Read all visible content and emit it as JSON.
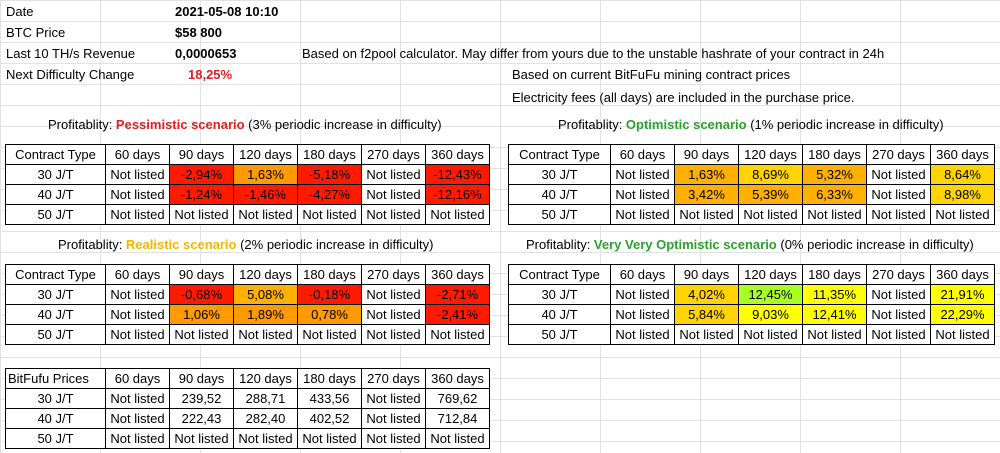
{
  "header": {
    "date_label": "Date",
    "date_value": "2021-05-08 10:10",
    "btc_label": "BTC Price",
    "btc_value": "$58 800",
    "revenue_label": "Last 10 TH/s Revenue",
    "revenue_value": "0,0000653",
    "difficulty_label": "Next Difficulty Change",
    "difficulty_value": "18,25%",
    "note_f2pool": "Based on f2pool calculator. May differ from yours due to the unstable hashrate of your contract in 24h",
    "note_prices": "Based on current BitFuFu mining contract prices",
    "note_fees": "Electricity fees (all days) are included in the purchase price."
  },
  "colors": {
    "red": "#ff1a00",
    "orange": "#ff9a00",
    "amber": "#ffb000",
    "yellow": "#ffff00",
    "yellow_orange": "#ffd400",
    "lime": "#aaff22",
    "title_red": "#e02020",
    "title_green": "#2ca02c",
    "title_yellow": "#f2b800"
  },
  "columns": [
    "60 days",
    "90 days",
    "120 days",
    "180 days",
    "270 days",
    "360 days"
  ],
  "pessimistic": {
    "prefix": "Profitablity: ",
    "name": "Pessimistic scenario",
    "suffix": " (3% periodic increase in difficulty)",
    "header": "Contract Type",
    "rows": [
      {
        "type": "30 J/T",
        "cells": [
          "Not listed",
          "-2,94%",
          "1,63%",
          "-5,18%",
          "Not listed",
          "-12,43%"
        ]
      },
      {
        "type": "40 J/T",
        "cells": [
          "Not listed",
          "-1,24%",
          "-1,46%",
          "-4,27%",
          "Not listed",
          "-12,16%"
        ]
      },
      {
        "type": "50 J/T",
        "cells": [
          "Not listed",
          "Not listed",
          "Not listed",
          "Not listed",
          "Not listed",
          "Not listed"
        ]
      }
    ]
  },
  "optimistic": {
    "prefix": "Profitablity: ",
    "name": "Optimistic scenario",
    "suffix": " (1% periodic increase in difficulty)",
    "header": "Contract Type",
    "rows": [
      {
        "type": "30 J/T",
        "cells": [
          "Not listed",
          "1,63%",
          "8,69%",
          "5,32%",
          "Not listed",
          "8,64%"
        ]
      },
      {
        "type": "40 J/T",
        "cells": [
          "Not listed",
          "3,42%",
          "5,39%",
          "6,33%",
          "Not listed",
          "8,98%"
        ]
      },
      {
        "type": "50 J/T",
        "cells": [
          "Not listed",
          "Not listed",
          "Not listed",
          "Not listed",
          "Not listed",
          "Not listed"
        ]
      }
    ]
  },
  "realistic": {
    "prefix": "Profitablity: ",
    "name": "Realistic scenario",
    "suffix": " (2% periodic increase in difficulty)",
    "header": "Contract Type",
    "rows": [
      {
        "type": "30 J/T",
        "cells": [
          "Not listed",
          "-0,68%",
          "5,08%",
          "-0,18%",
          "Not listed",
          "-2,71%"
        ]
      },
      {
        "type": "40 J/T",
        "cells": [
          "Not listed",
          "1,06%",
          "1,89%",
          "0,78%",
          "Not listed",
          "-2,41%"
        ]
      },
      {
        "type": "50 J/T",
        "cells": [
          "Not listed",
          "Not listed",
          "Not listed",
          "Not listed",
          "Not listed",
          "Not listed"
        ]
      }
    ]
  },
  "very_optimistic": {
    "prefix": "Profitablity: ",
    "name": "Very Very Optimistic scenario",
    "suffix": " (0% periodic increase in difficulty)",
    "header": "Contract Type",
    "rows": [
      {
        "type": "30 J/T",
        "cells": [
          "Not listed",
          "4,02%",
          "12,45%",
          "11,35%",
          "Not listed",
          "21,91%"
        ]
      },
      {
        "type": "40 J/T",
        "cells": [
          "Not listed",
          "5,84%",
          "9,03%",
          "12,41%",
          "Not listed",
          "22,29%"
        ]
      },
      {
        "type": "50 J/T",
        "cells": [
          "Not listed",
          "Not listed",
          "Not listed",
          "Not listed",
          "Not listed",
          "Not listed"
        ]
      }
    ]
  },
  "prices": {
    "header": "BitFufu Prices",
    "rows": [
      {
        "type": "30 J/T",
        "cells": [
          "Not listed",
          "239,52",
          "288,71",
          "433,56",
          "Not listed",
          "769,62"
        ]
      },
      {
        "type": "40 J/T",
        "cells": [
          "Not listed",
          "222,43",
          "282,40",
          "402,52",
          "Not listed",
          "712,84"
        ]
      },
      {
        "type": "50 J/T",
        "cells": [
          "Not listed",
          "Not listed",
          "Not listed",
          "Not listed",
          "Not listed",
          "Not listed"
        ]
      }
    ]
  }
}
